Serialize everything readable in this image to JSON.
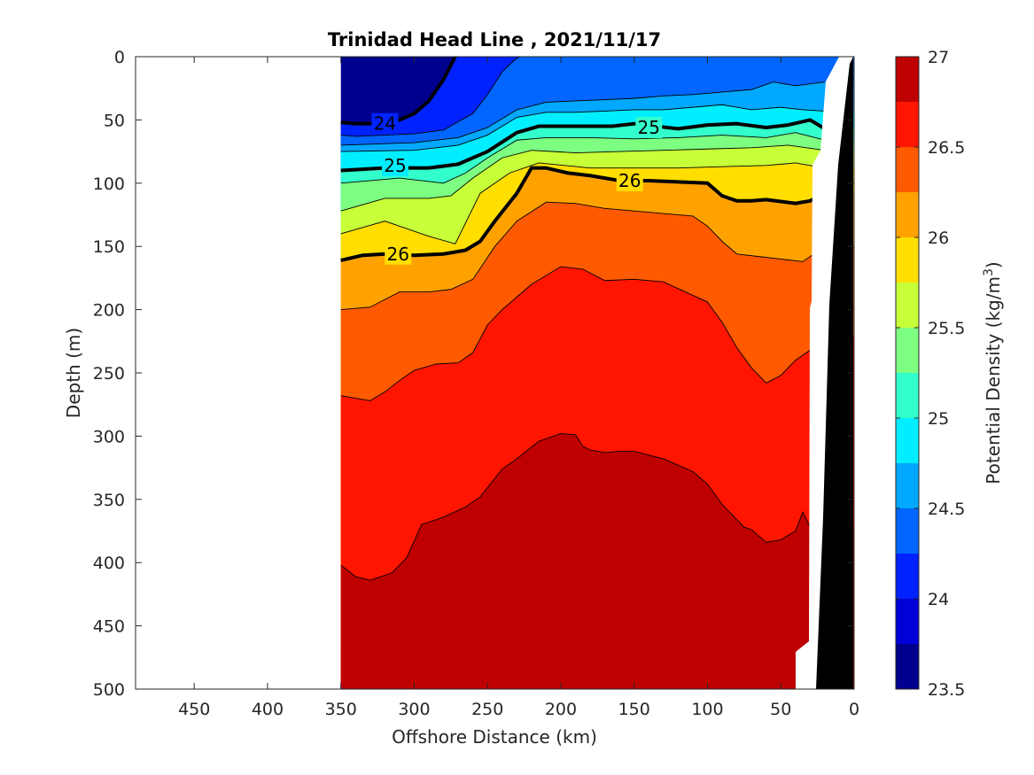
{
  "chart_data": {
    "type": "heatmap",
    "subtype": "filled-contour-section",
    "title": "Trinidad Head Line , 2021/11/17",
    "xlabel": "Offshore Distance (km)",
    "ylabel": "Depth (m)",
    "xlim": [
      490,
      0
    ],
    "x_reversed": true,
    "ylim": [
      0,
      500
    ],
    "y_reversed": true,
    "xticks": [
      450,
      400,
      350,
      300,
      250,
      200,
      150,
      100,
      50,
      0
    ],
    "yticks": [
      0,
      50,
      100,
      150,
      200,
      250,
      300,
      350,
      400,
      450,
      500
    ],
    "colorbar": {
      "label": "Potential Density (kg/m³)",
      "label_main": "Potential Density (kg/m",
      "label_sup": "3",
      "label_end": ")",
      "range": [
        23.5,
        27
      ],
      "ticks": [
        23.5,
        24,
        24.5,
        25,
        25.5,
        26,
        26.5,
        27
      ],
      "levels": [
        23.5,
        23.75,
        24,
        24.25,
        24.5,
        24.75,
        25,
        25.25,
        25.5,
        25.75,
        26,
        26.25,
        26.5,
        26.75,
        27
      ],
      "colors": [
        "#00008f",
        "#0000d9",
        "#0022ff",
        "#0066ff",
        "#00a8ff",
        "#00eeff",
        "#33ffcc",
        "#7dff82",
        "#c7ff38",
        "#ffde00",
        "#ffa200",
        "#ff5a00",
        "#ff1500",
        "#bf0000"
      ],
      "colormap": "jet"
    },
    "data_extent_x": [
      350,
      20
    ],
    "bottom_color": "#000000",
    "contour_levels": [
      {
        "name": "sigma 24.0",
        "level": 24.0,
        "x": [
          350,
          340,
          330,
          320,
          310,
          300,
          290,
          280,
          272
        ],
        "y": [
          52,
          53,
          53,
          52,
          50,
          45,
          35,
          18,
          0
        ]
      },
      {
        "name": "sigma 24.25",
        "level": 24.25,
        "x": [
          350,
          340,
          320,
          300,
          280,
          260,
          250,
          240,
          232,
          228
        ],
        "y": [
          62,
          63,
          62,
          61,
          58,
          45,
          30,
          12,
          3,
          0
        ]
      },
      {
        "name": "sigma 24.5",
        "level": 24.5,
        "x": [
          350,
          300,
          270,
          250,
          230,
          210,
          190,
          170,
          150,
          130,
          110,
          90,
          70,
          55,
          40,
          20
        ],
        "y": [
          70,
          68,
          64,
          56,
          42,
          36,
          35,
          34,
          33,
          31,
          30,
          28,
          26,
          20,
          23,
          20
        ]
      },
      {
        "name": "sigma 24.75",
        "level": 24.75,
        "x": [
          350,
          300,
          270,
          250,
          230,
          210,
          190,
          170,
          150,
          130,
          110,
          90,
          70,
          50,
          35,
          20
        ],
        "y": [
          75,
          74,
          70,
          62,
          48,
          44,
          44,
          43,
          42,
          42,
          40,
          38,
          42,
          40,
          42,
          43
        ]
      },
      {
        "name": "sigma 25.0",
        "level": 25.0,
        "x": [
          350,
          320,
          290,
          270,
          250,
          230,
          215,
          190,
          165,
          150,
          120,
          100,
          80,
          60,
          45,
          30,
          20
        ],
        "y": [
          90,
          88,
          88,
          85,
          75,
          60,
          55,
          55,
          55,
          53,
          57,
          54,
          53,
          56,
          54,
          50,
          57
        ]
      },
      {
        "name": "sigma 25.25",
        "level": 25.25,
        "x": [
          350,
          310,
          280,
          265,
          250,
          230,
          210,
          180,
          150,
          120,
          90,
          60,
          40,
          20
        ],
        "y": [
          100,
          96,
          100,
          92,
          80,
          66,
          64,
          64,
          65,
          64,
          62,
          64,
          60,
          66
        ]
      },
      {
        "name": "sigma 25.5",
        "level": 25.5,
        "x": [
          350,
          320,
          290,
          275,
          260,
          240,
          220,
          190,
          160,
          130,
          100,
          70,
          45,
          20
        ],
        "y": [
          122,
          112,
          112,
          110,
          96,
          80,
          74,
          76,
          75,
          74,
          73,
          72,
          70,
          74
        ]
      },
      {
        "name": "sigma 25.75",
        "level": 25.75,
        "x": [
          350,
          320,
          290,
          272,
          255,
          235,
          215,
          180,
          150,
          120,
          90,
          60,
          40,
          20
        ],
        "y": [
          140,
          130,
          142,
          148,
          108,
          92,
          84,
          88,
          88,
          88,
          87,
          86,
          84,
          88
        ]
      },
      {
        "name": "sigma 26.0",
        "level": 26.0,
        "x": [
          350,
          335,
          320,
          300,
          280,
          265,
          255,
          245,
          230,
          220,
          210,
          195,
          180,
          160,
          140,
          120,
          100,
          90,
          80,
          70,
          60,
          40,
          30,
          20
        ],
        "y": [
          161,
          157,
          156,
          157,
          156,
          153,
          146,
          130,
          108,
          88,
          88,
          92,
          94,
          98,
          98,
          99,
          100,
          110,
          114,
          114,
          113,
          116,
          114,
          108
        ]
      },
      {
        "name": "sigma 26.25",
        "level": 26.25,
        "x": [
          350,
          330,
          310,
          290,
          275,
          260,
          245,
          230,
          210,
          190,
          170,
          150,
          130,
          110,
          100,
          90,
          80,
          65,
          50,
          35,
          20
        ],
        "y": [
          200,
          198,
          186,
          186,
          184,
          176,
          150,
          130,
          115,
          116,
          120,
          122,
          124,
          126,
          134,
          146,
          156,
          158,
          160,
          162,
          150
        ]
      },
      {
        "name": "sigma 26.5",
        "level": 26.5,
        "x": [
          350,
          330,
          320,
          310,
          300,
          285,
          270,
          260,
          250,
          240,
          220,
          200,
          185,
          170,
          150,
          130,
          100,
          90,
          80,
          70,
          60,
          50,
          40,
          30,
          22
        ],
        "y": [
          268,
          272,
          265,
          256,
          248,
          243,
          242,
          234,
          212,
          200,
          180,
          166,
          168,
          177,
          176,
          178,
          194,
          210,
          230,
          246,
          258,
          252,
          240,
          232,
          222
        ]
      },
      {
        "name": "sigma 26.75",
        "level": 26.75,
        "x": [
          350,
          340,
          330,
          315,
          305,
          295,
          280,
          265,
          255,
          240,
          230,
          215,
          200,
          190,
          185,
          180,
          170,
          160,
          150,
          130,
          110,
          100,
          90,
          80,
          75,
          70,
          60,
          50,
          40,
          35,
          30
        ],
        "y": [
          402,
          411,
          414,
          408,
          396,
          370,
          364,
          356,
          348,
          326,
          318,
          304,
          298,
          299,
          308,
          311,
          313,
          312,
          312,
          318,
          328,
          338,
          354,
          366,
          372,
          374,
          384,
          382,
          375,
          360,
          372
        ]
      },
      {
        "name": "sigma 27.0",
        "level": 27.0,
        "x": [
          30,
          28,
          25
        ],
        "y": [
          470,
          480,
          500
        ]
      }
    ],
    "bold_contours": [
      {
        "level": 24.0,
        "x": [
          350,
          340,
          330,
          320,
          310,
          300,
          290,
          280,
          272
        ],
        "y": [
          52,
          53,
          53,
          52,
          50,
          45,
          35,
          18,
          0
        ]
      },
      {
        "level": 25.0,
        "x": [
          350,
          320,
          290,
          270,
          250,
          230,
          215,
          190,
          165,
          150,
          120,
          100,
          80,
          60,
          45,
          30,
          20
        ],
        "y": [
          90,
          88,
          88,
          85,
          75,
          60,
          55,
          55,
          55,
          53,
          57,
          54,
          53,
          56,
          54,
          50,
          57
        ]
      },
      {
        "level": 26.0,
        "x": [
          350,
          335,
          320,
          300,
          280,
          265,
          255,
          245,
          230,
          220,
          210,
          195,
          180,
          160,
          140,
          120,
          100,
          90,
          80,
          70,
          60,
          40,
          30,
          20
        ],
        "y": [
          161,
          157,
          156,
          157,
          156,
          153,
          146,
          130,
          108,
          88,
          88,
          92,
          94,
          98,
          98,
          99,
          100,
          110,
          114,
          114,
          113,
          116,
          114,
          108
        ]
      }
    ],
    "contour_labels": [
      {
        "text": "24",
        "x": 320,
        "y": 53
      },
      {
        "text": "25",
        "x": 313,
        "y": 86
      },
      {
        "text": "25",
        "x": 140,
        "y": 56
      },
      {
        "text": "26",
        "x": 153,
        "y": 98
      },
      {
        "text": "26",
        "x": 311,
        "y": 156
      }
    ]
  }
}
